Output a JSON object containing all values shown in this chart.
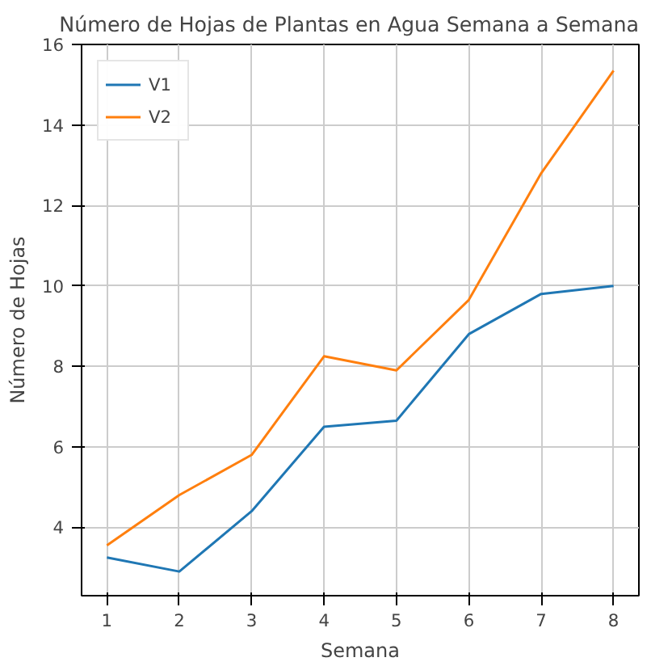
{
  "chart_data": {
    "type": "line",
    "title": "Número de Hojas de Plantas en Agua Semana a Semana",
    "xlabel": "Semana",
    "ylabel": "Número de Hojas",
    "x": [
      1,
      2,
      3,
      4,
      5,
      6,
      7,
      8
    ],
    "series": [
      {
        "name": "V1",
        "color": "#1f77b4",
        "values": [
          3.25,
          2.9,
          4.4,
          6.5,
          6.65,
          8.8,
          9.8,
          10.0
        ]
      },
      {
        "name": "V2",
        "color": "#ff7f0e",
        "values": [
          3.55,
          4.8,
          5.8,
          8.25,
          7.9,
          9.65,
          12.8,
          15.35
        ]
      }
    ],
    "xlim": [
      0.65,
      8.35
    ],
    "ylim": [
      2.3,
      16.0
    ],
    "xticks": [
      1,
      2,
      3,
      4,
      5,
      6,
      7,
      8
    ],
    "yticks": [
      4,
      6,
      8,
      10,
      12,
      14,
      16
    ],
    "grid": true,
    "legend": "top left",
    "marker": "none",
    "line_style": "solid"
  }
}
